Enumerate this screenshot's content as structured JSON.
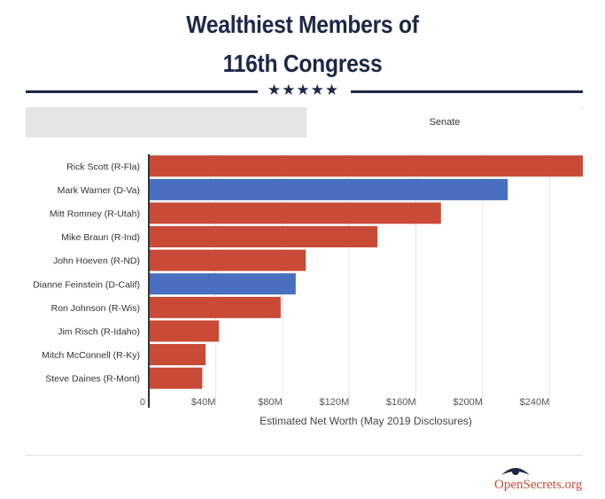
{
  "title_line1": "Wealthiest Members of",
  "title_line2": "116th Congress",
  "stars": "★★★★★",
  "tabs": [
    {
      "label": "",
      "active": false
    },
    {
      "label": "Senate",
      "active": true
    }
  ],
  "logo_text": "OpenSecrets.org",
  "colors": {
    "republican": "#c94a36",
    "democrat": "#4a6fc1",
    "title": "#1c2846"
  },
  "chart_data": {
    "type": "bar",
    "orientation": "horizontal",
    "categories": [
      "Rick Scott (R-Fla)",
      "Mark Warner (D-Va)",
      "Mitt Romney (R-Utah)",
      "Mike Braun (R-Ind)",
      "John Hoeven (R-ND)",
      "Dianne Feinstein (D-Calif)",
      "Ron Johnson (R-Wis)",
      "Jim Risch (R-Idaho)",
      "Mitch McConnell (R-Ky)",
      "Steve Daines (R-Mont)"
    ],
    "values": [
      260,
      215,
      175,
      137,
      94,
      88,
      79,
      42,
      34,
      32
    ],
    "party": [
      "R",
      "D",
      "R",
      "R",
      "R",
      "D",
      "R",
      "R",
      "R",
      "R"
    ],
    "xlabel": "Estimated Net Worth (May 2019 Disclosures)",
    "xlim": [
      0,
      260
    ],
    "xticks": [
      0,
      40,
      80,
      120,
      160,
      200,
      240
    ],
    "xtick_labels": [
      "0",
      "$40M",
      "$80M",
      "$120M",
      "$160M",
      "$200M",
      "$240M"
    ],
    "grid": true
  }
}
